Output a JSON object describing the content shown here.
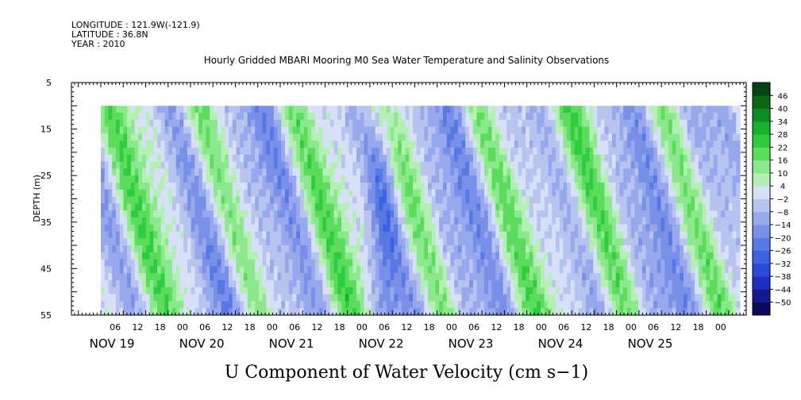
{
  "header": {
    "longitude": "LONGITUDE : 121.9W(-121.9)",
    "latitude": "LATITUDE : 36.8N",
    "year": "YEAR : 2010"
  },
  "chart_data": {
    "type": "heatmap",
    "title": "Hourly Gridded MBARI Mooring M0 Sea Water Temperature and Salinity Observations",
    "xlabel": "U Component of Water Velocity (cm s−1)",
    "ylabel": "DEPTH (m)",
    "ylim": [
      55,
      5
    ],
    "yticks": [
      5,
      15,
      25,
      35,
      45,
      55
    ],
    "data_depth_range": [
      10,
      55
    ],
    "hour_ticks": [
      "06",
      "12",
      "18",
      "00",
      "06",
      "12",
      "18",
      "00",
      "06",
      "12",
      "18",
      "00",
      "06",
      "12",
      "18",
      "00",
      "06",
      "12",
      "18",
      "00",
      "06",
      "12",
      "18",
      "00",
      "06",
      "12",
      "18",
      "00"
    ],
    "day_labels": [
      "NOV 19",
      "NOV 20",
      "NOV 21",
      "NOV 22",
      "NOV 23",
      "NOV 24",
      "NOV 25"
    ],
    "time_range_hours": [
      0,
      171
    ],
    "colorbar": {
      "levels": [
        -50,
        -44,
        -38,
        -32,
        -26,
        -20,
        -14,
        -8,
        -2,
        4,
        10,
        16,
        22,
        28,
        34,
        40,
        46
      ],
      "colors": [
        "#0a0a5a",
        "#141a8c",
        "#1c2fc0",
        "#2a4ad8",
        "#3c62e0",
        "#5878e4",
        "#7890e8",
        "#98a8ec",
        "#b8c4f0",
        "#d8e0f8",
        "#b4f0b4",
        "#8ce88c",
        "#5cdc5c",
        "#30cc40",
        "#18b030",
        "#0e8c24",
        "#086818",
        "#044410"
      ]
    },
    "structure": {
      "description_points": [
        {
          "hour": 0,
          "phase": "green-surface"
        },
        {
          "hour": 42,
          "phase": "blue"
        },
        {
          "hour": 77,
          "phase": "blue-core"
        },
        {
          "hour": 96,
          "phase": "green"
        },
        {
          "hour": 115,
          "phase": "blue"
        },
        {
          "hour": 131,
          "phase": "green"
        },
        {
          "hour": 168,
          "phase": "green"
        }
      ]
    }
  }
}
